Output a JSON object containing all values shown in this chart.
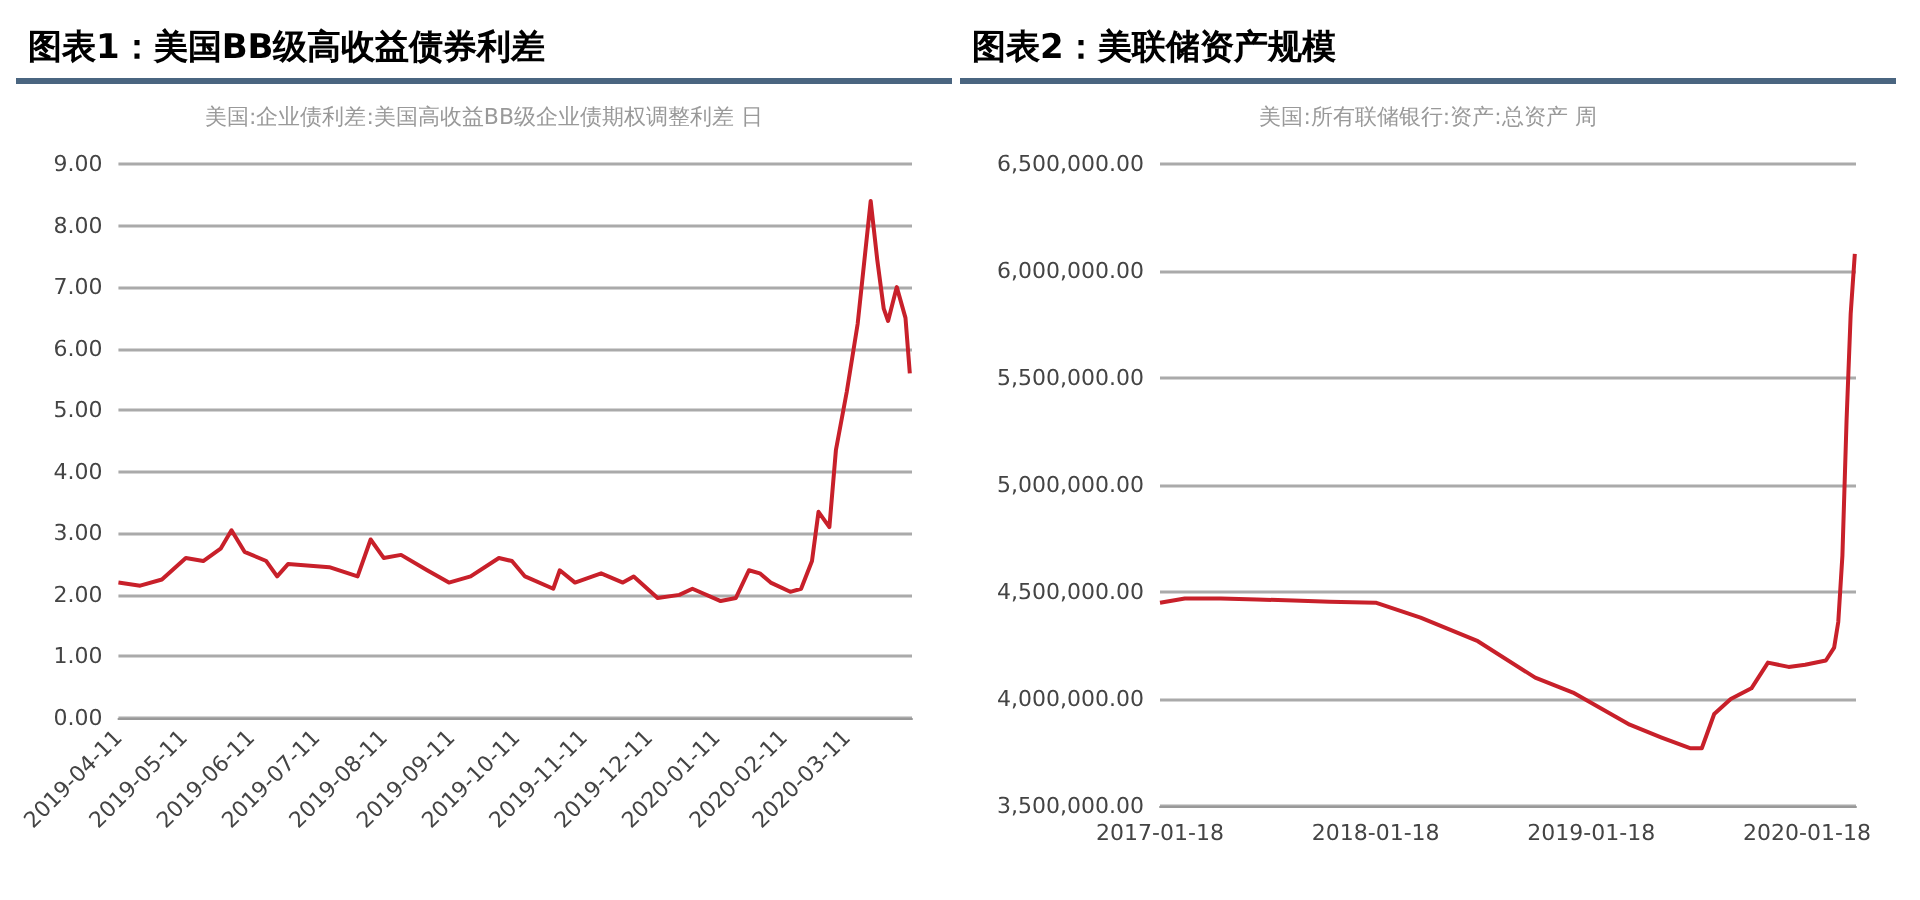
{
  "chart_data": [
    {
      "type": "line",
      "title": "图表1：美国BB级高收益债券利差",
      "subtitle": "美国:企业债利差:美国高收益BB级企业债期权调整利差 日",
      "grid": "y",
      "marker": "none",
      "xlim": [
        "2019-04-11",
        "2020-04-10"
      ],
      "xticks": [
        "2019-04-11",
        "2019-05-11",
        "2019-06-11",
        "2019-07-11",
        "2019-08-11",
        "2019-09-11",
        "2019-10-11",
        "2019-11-11",
        "2019-12-11",
        "2020-01-11",
        "2020-02-11",
        "2020-03-11"
      ],
      "ylim": [
        0,
        9
      ],
      "yticks": [
        {
          "value": 0,
          "label": "0.00"
        },
        {
          "value": 1,
          "label": "1.00"
        },
        {
          "value": 2,
          "label": "2.00"
        },
        {
          "value": 3,
          "label": "3.00"
        },
        {
          "value": 4,
          "label": "4.00"
        },
        {
          "value": 5,
          "label": "5.00"
        },
        {
          "value": 6,
          "label": "6.00"
        },
        {
          "value": 7,
          "label": "7.00"
        },
        {
          "value": 8,
          "label": "8.00"
        },
        {
          "value": 9,
          "label": "9.00"
        }
      ],
      "series": [
        {
          "color": "#c8202a",
          "x": [
            "2019-04-11",
            "2019-04-21",
            "2019-05-01",
            "2019-05-12",
            "2019-05-20",
            "2019-05-28",
            "2019-06-02",
            "2019-06-08",
            "2019-06-18",
            "2019-06-23",
            "2019-06-28",
            "2019-07-17",
            "2019-07-30",
            "2019-08-05",
            "2019-08-11",
            "2019-08-19",
            "2019-08-31",
            "2019-09-10",
            "2019-09-20",
            "2019-10-03",
            "2019-10-09",
            "2019-10-15",
            "2019-10-28",
            "2019-10-31",
            "2019-11-07",
            "2019-11-19",
            "2019-11-29",
            "2019-12-04",
            "2019-12-15",
            "2019-12-25",
            "2019-12-31",
            "2020-01-13",
            "2020-01-20",
            "2020-01-26",
            "2020-01-31",
            "2020-02-05",
            "2020-02-14",
            "2020-02-19",
            "2020-02-24",
            "2020-02-27",
            "2020-03-03",
            "2020-03-06",
            "2020-03-11",
            "2020-03-16",
            "2020-03-22",
            "2020-03-25",
            "2020-03-28",
            "2020-03-30",
            "2020-04-03",
            "2020-04-07",
            "2020-04-09"
          ],
          "values": [
            2.2,
            2.15,
            2.25,
            2.6,
            2.55,
            2.75,
            3.05,
            2.7,
            2.55,
            2.3,
            2.5,
            2.45,
            2.3,
            2.9,
            2.6,
            2.65,
            2.4,
            2.2,
            2.3,
            2.6,
            2.55,
            2.3,
            2.1,
            2.4,
            2.2,
            2.35,
            2.2,
            2.3,
            1.95,
            2.0,
            2.1,
            1.9,
            1.95,
            2.4,
            2.35,
            2.2,
            2.05,
            2.1,
            2.55,
            3.35,
            3.1,
            4.35,
            5.3,
            6.4,
            8.4,
            7.45,
            6.65,
            6.45,
            7.0,
            6.5,
            5.6
          ]
        }
      ]
    },
    {
      "type": "line",
      "title": "图表2：美联储资产规模",
      "subtitle": "美国:所有联储银行:资产:总资产 周",
      "grid": "y",
      "marker": "none",
      "xlim": [
        "2017-01-18",
        "2020-04-10"
      ],
      "xticks": [
        "2017-01-18",
        "2018-01-18",
        "2019-01-18",
        "2020-01-18"
      ],
      "ylim": [
        3500000,
        6500000
      ],
      "yticks": [
        {
          "value": 3500000,
          "label": "3,500,000.00"
        },
        {
          "value": 4000000,
          "label": "4,000,000.00"
        },
        {
          "value": 4500000,
          "label": "4,500,000.00"
        },
        {
          "value": 5000000,
          "label": "5,000,000.00"
        },
        {
          "value": 5500000,
          "label": "5,500,000.00"
        },
        {
          "value": 6000000,
          "label": "6,000,000.00"
        },
        {
          "value": 6500000,
          "label": "6,500,000.00"
        }
      ],
      "series": [
        {
          "color": "#c8202a",
          "x": [
            "2017-01-18",
            "2017-03-01",
            "2017-05-01",
            "2017-07-01",
            "2017-09-01",
            "2017-11-01",
            "2018-01-18",
            "2018-04-04",
            "2018-07-10",
            "2018-10-15",
            "2018-12-18",
            "2019-03-24",
            "2019-05-17",
            "2019-07-04",
            "2019-07-24",
            "2019-08-14",
            "2019-09-11",
            "2019-10-16",
            "2019-11-13",
            "2019-12-18",
            "2020-01-15",
            "2020-02-19",
            "2020-03-04",
            "2020-03-11",
            "2020-03-18",
            "2020-03-25",
            "2020-04-01",
            "2020-04-08"
          ],
          "values": [
            4450000,
            4470000,
            4470000,
            4465000,
            4460000,
            4455000,
            4450000,
            4380000,
            4270000,
            4100000,
            4030000,
            3880000,
            3820000,
            3770000,
            3770000,
            3930000,
            4000000,
            4050000,
            4170000,
            4150000,
            4160000,
            4180000,
            4240000,
            4360000,
            4670000,
            5300000,
            5800000,
            6080000
          ]
        }
      ]
    }
  ]
}
